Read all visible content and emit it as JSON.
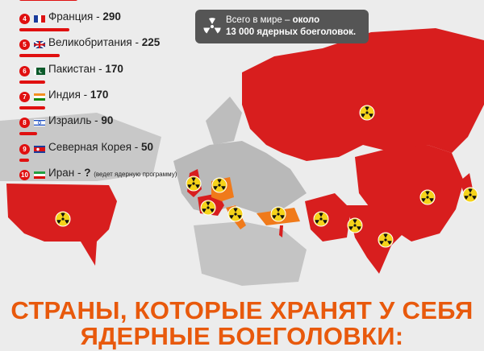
{
  "list": [
    {
      "num": "4",
      "country": "Франция",
      "value": "290",
      "flag": "france"
    },
    {
      "num": "5",
      "country": "Великобритания",
      "value": "225",
      "flag": "uk"
    },
    {
      "num": "6",
      "country": "Пакистан",
      "value": "170",
      "flag": "pakistan"
    },
    {
      "num": "7",
      "country": "Индия",
      "value": "170",
      "flag": "india"
    },
    {
      "num": "8",
      "country": "Израиль",
      "value": "90",
      "flag": "israel"
    },
    {
      "num": "9",
      "country": "Северная Корея",
      "value": "50",
      "flag": "north-korea"
    },
    {
      "num": "10",
      "country": "Иран",
      "value": "?",
      "note": "(ведет ядерную программу)",
      "flag": "iran"
    }
  ],
  "separator": " - ",
  "callout": {
    "line1": "Всего в мире – ",
    "line1_bold": "около",
    "line2": "13 000 ядерных боеголовок.",
    "icon": "radiation-icon"
  },
  "title": {
    "line1": "СТРАНЫ, КОТОРЫЕ ХРАНЯТ У СЕБЯ",
    "line2": "ЯДЕРНЫЕ БОЕГОЛОВКИ:"
  },
  "colors": {
    "nuclear_state": "#d81e1e",
    "hosting_state": "#f07a1a",
    "accent": "#e01010",
    "title": "#e8590c"
  }
}
